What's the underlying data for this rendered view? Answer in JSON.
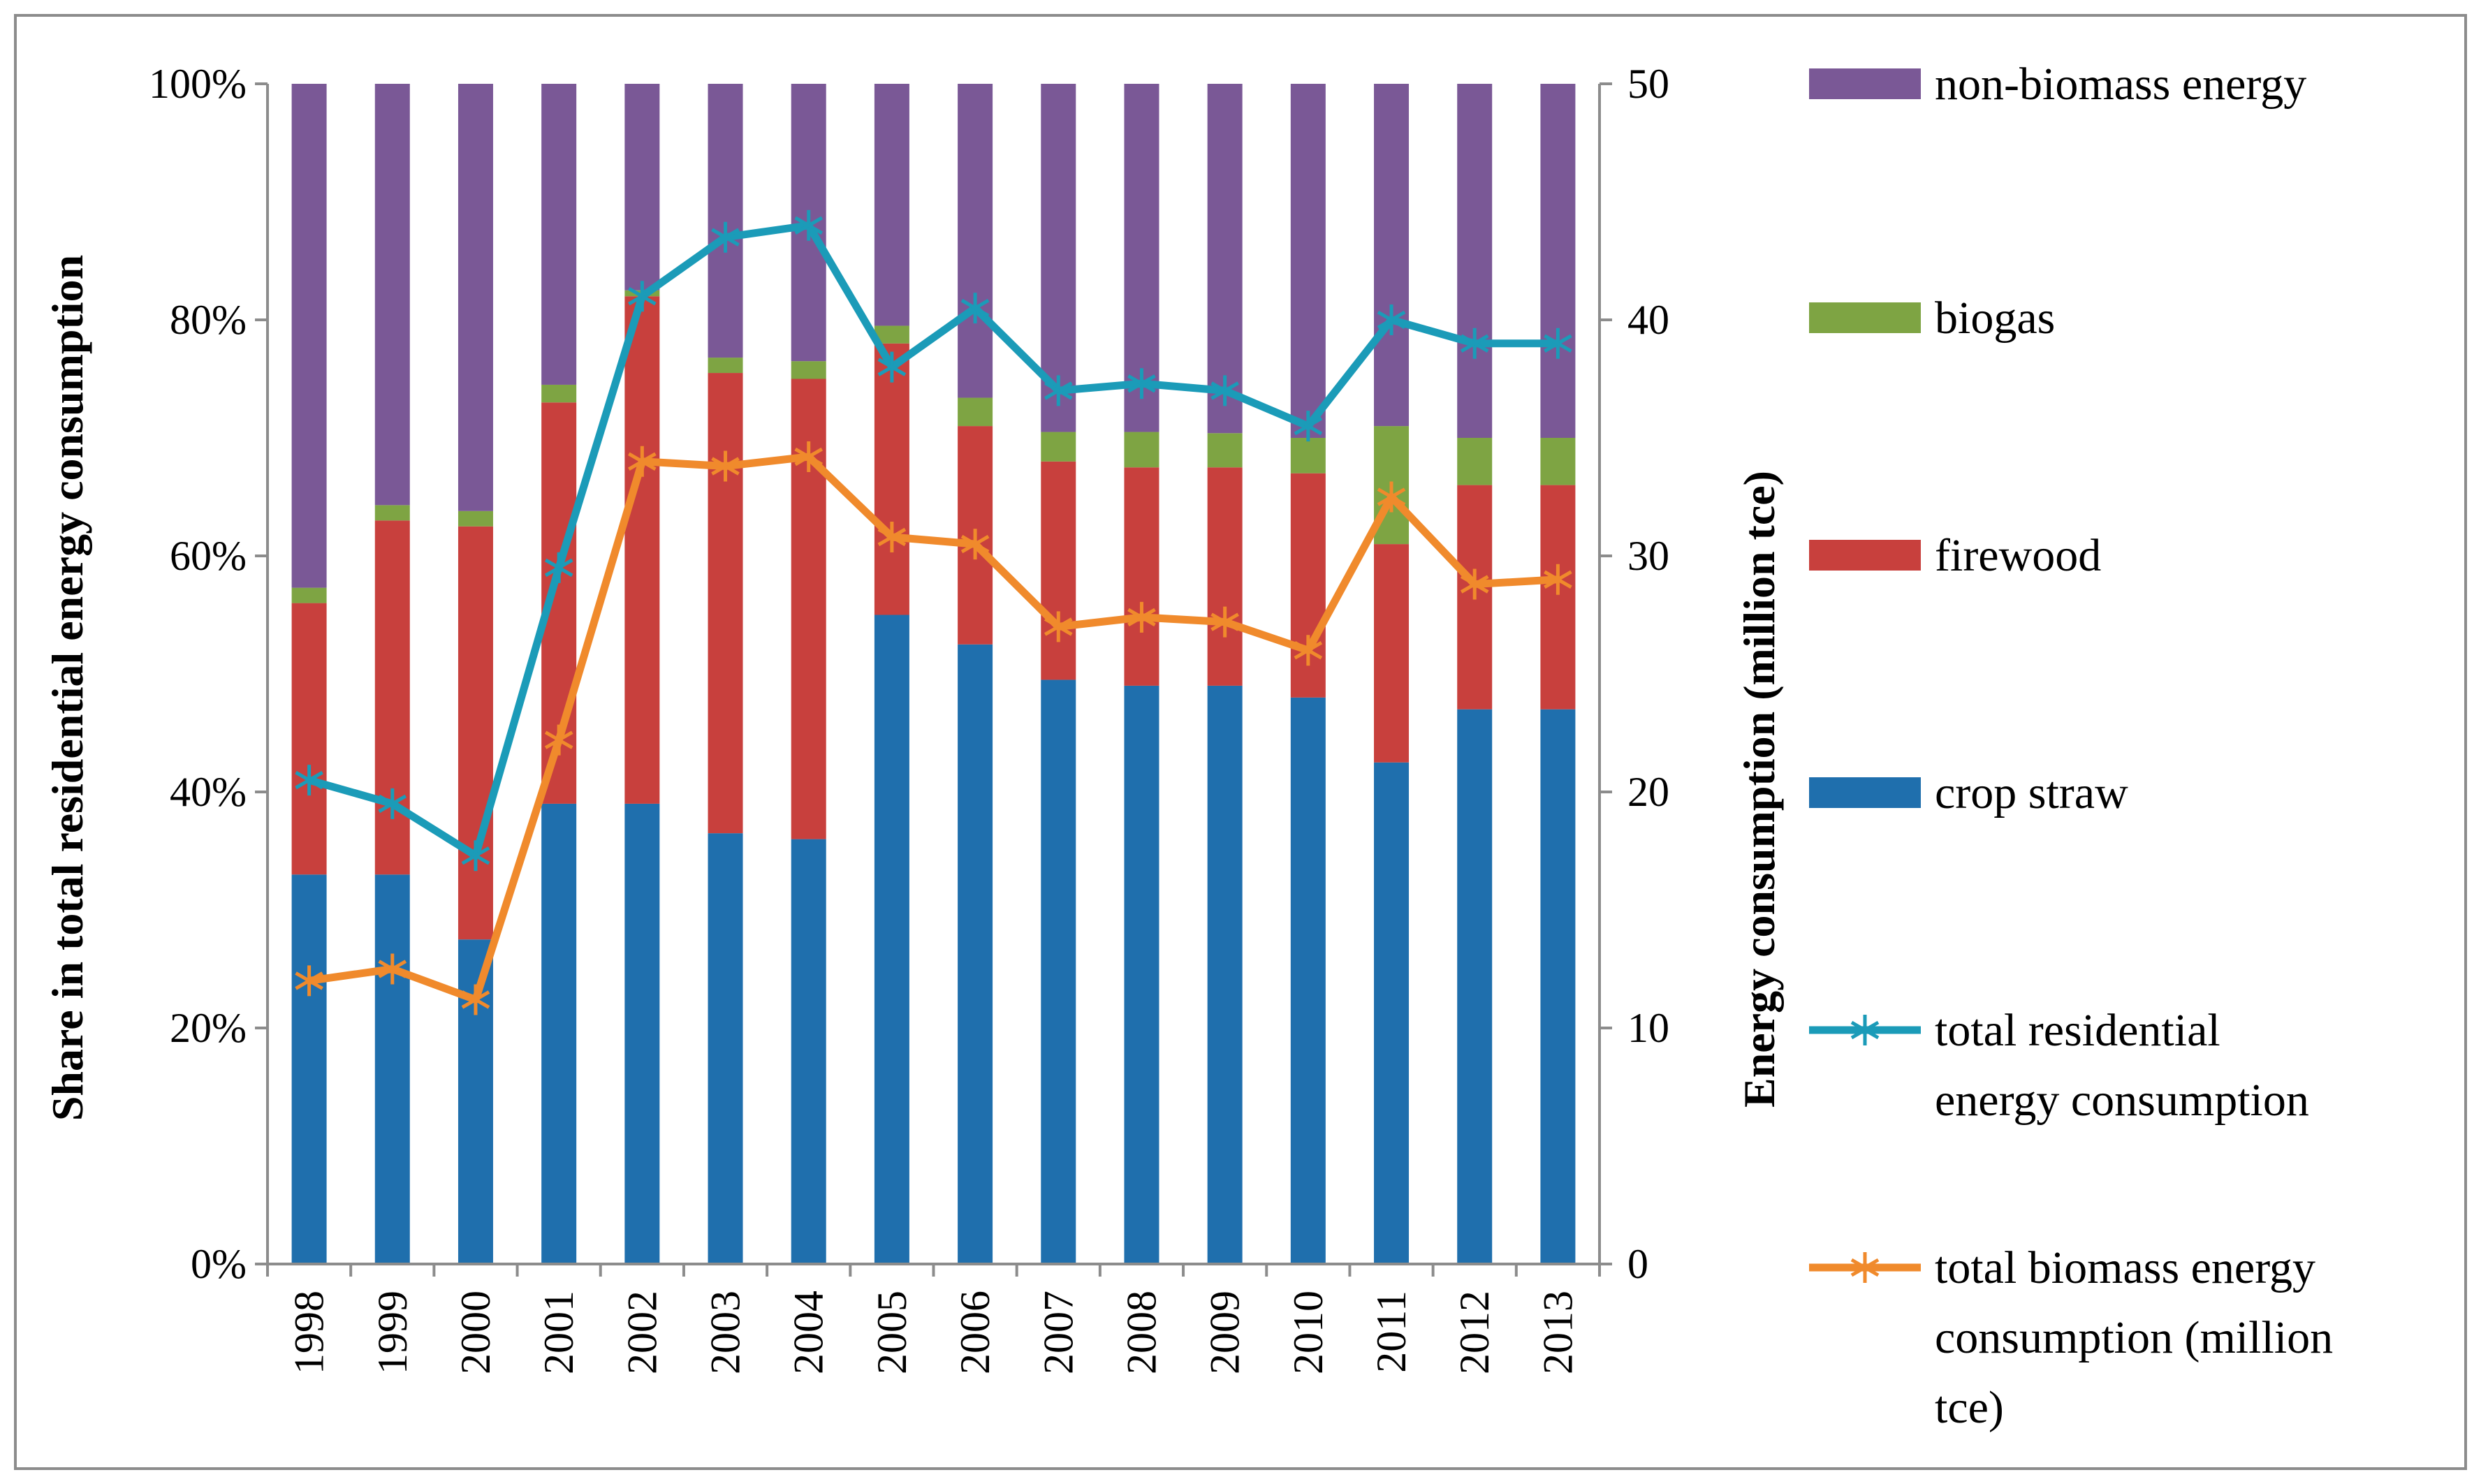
{
  "chart_data": {
    "type": "bar",
    "stacked": true,
    "categories": [
      "1998",
      "1999",
      "2000",
      "2001",
      "2002",
      "2003",
      "2004",
      "2005",
      "2006",
      "2007",
      "2008",
      "2009",
      "2010",
      "2011",
      "2012",
      "2013"
    ],
    "series": [
      {
        "name": "crop straw",
        "axis": "left",
        "color": "#1f6fad",
        "values": [
          33,
          33,
          27.5,
          39,
          39,
          36.5,
          36,
          55,
          52.5,
          49.5,
          49,
          49,
          48,
          42.5,
          47,
          47
        ]
      },
      {
        "name": "firewood",
        "axis": "left",
        "color": "#c8403d",
        "values": [
          23,
          30,
          35,
          34,
          43,
          39,
          39,
          23,
          18.5,
          18.5,
          18.5,
          18.5,
          19,
          18.5,
          19,
          19
        ]
      },
      {
        "name": "biogas",
        "axis": "left",
        "color": "#7ea443",
        "values": [
          1.3,
          1.3,
          1.3,
          1.5,
          0.5,
          1.3,
          1.5,
          1.5,
          2.4,
          2.5,
          3,
          2.9,
          3,
          10,
          4,
          4
        ]
      },
      {
        "name": "non-biomass energy",
        "axis": "left",
        "color": "#7a5896",
        "values": [
          42.7,
          35.7,
          36.2,
          25.5,
          17.5,
          23.2,
          23.5,
          20.5,
          26.6,
          29.5,
          29.5,
          29.6,
          30,
          29,
          30,
          30
        ]
      }
    ],
    "lines": [
      {
        "name": "total residential energy consumption",
        "axis": "right",
        "color": "#1b9bb8",
        "values": [
          20.5,
          19.5,
          17.3,
          29.5,
          41,
          43.5,
          44,
          38,
          40.5,
          37,
          37.3,
          37,
          35.5,
          40,
          39,
          39
        ]
      },
      {
        "name": "total biomass energy consumption (million tce)",
        "axis": "right",
        "color": "#f08a2c",
        "values": [
          12,
          12.5,
          11.2,
          22.2,
          34,
          33.8,
          34.2,
          30.8,
          30.5,
          27,
          27.4,
          27.2,
          26,
          32.5,
          28.8,
          29
        ]
      }
    ],
    "left_axis": {
      "title": "Share in total residential energy consumption",
      "min": 0,
      "max": 100,
      "ticks": [
        "0%",
        "20%",
        "40%",
        "60%",
        "80%",
        "100%"
      ]
    },
    "right_axis": {
      "title": "Energy consumption (million tce)",
      "min": 0,
      "max": 50,
      "ticks": [
        "0",
        "10",
        "20",
        "30",
        "40",
        "50"
      ]
    },
    "legend_position": "right",
    "legend": [
      {
        "label": "non-biomass energy",
        "kind": "box",
        "color": "#7a5896"
      },
      {
        "label": "biogas",
        "kind": "box",
        "color": "#7ea443"
      },
      {
        "label": "firewood",
        "kind": "box",
        "color": "#c8403d"
      },
      {
        "label": "crop straw",
        "kind": "box",
        "color": "#1f6fad"
      },
      {
        "label": "total residential energy consumption",
        "lines": [
          "total residential",
          "energy consumption"
        ],
        "kind": "line",
        "color": "#1b9bb8"
      },
      {
        "label": "total biomass energy consumption (million tce)",
        "lines": [
          "total biomass energy",
          "consumption (million",
          "tce)"
        ],
        "kind": "line",
        "color": "#f08a2c"
      }
    ]
  }
}
